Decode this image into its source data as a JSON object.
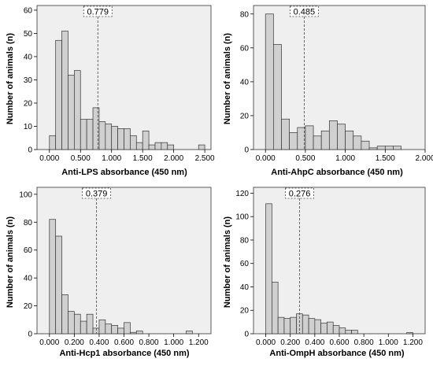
{
  "chart_data": [
    {
      "type": "bar",
      "xlabel": "Anti-LPS absorbance (450 nm)",
      "ylabel": "Number of animals (n)",
      "cutoff": 0.779,
      "cutoff_label": "0.779",
      "bin_width": 0.1,
      "bin_starts": [
        0.0,
        0.1,
        0.2,
        0.3,
        0.4,
        0.5,
        0.6,
        0.7,
        0.8,
        0.9,
        1.0,
        1.1,
        1.2,
        1.3,
        1.4,
        1.5,
        1.6,
        1.7,
        1.8,
        1.9,
        2.0,
        2.1,
        2.2,
        2.3,
        2.4
      ],
      "values": [
        6,
        47,
        51,
        32,
        34,
        13,
        13,
        18,
        12,
        11,
        10,
        9,
        9,
        6,
        3,
        8,
        2,
        3,
        3,
        2,
        0,
        0,
        0,
        0,
        2
      ],
      "xlim": [
        -0.2,
        2.6
      ],
      "ylim": [
        0,
        62
      ],
      "xticks": [
        0,
        0.5,
        1.0,
        1.5,
        2.0,
        2.5
      ],
      "xtick_labels": [
        "0.000",
        "0.500",
        "1.000",
        "1.500",
        "2.000",
        "2.500"
      ],
      "yticks": [
        0,
        10,
        20,
        30,
        40,
        50,
        60
      ],
      "ytick_labels": [
        "0",
        "10",
        "20",
        "30",
        "40",
        "50",
        "60"
      ],
      "colors": {
        "bar": "#d0d0d0",
        "plot_bg": "#efefef",
        "edge": "#333333"
      }
    },
    {
      "type": "bar",
      "xlabel": "Anti-AhpC absorbance (450 nm)",
      "ylabel": "Number of animals (n)",
      "cutoff": 0.485,
      "cutoff_label": "0.485",
      "bin_width": 0.1,
      "bin_starts": [
        0.0,
        0.1,
        0.2,
        0.3,
        0.4,
        0.5,
        0.6,
        0.7,
        0.8,
        0.9,
        1.0,
        1.1,
        1.2,
        1.3,
        1.4,
        1.5,
        1.6,
        1.7
      ],
      "values": [
        80,
        62,
        18,
        10,
        13,
        14,
        8,
        11,
        17,
        15,
        11,
        8,
        5,
        1,
        2,
        2,
        2,
        0
      ],
      "xlim": [
        -0.15,
        2.0
      ],
      "ylim": [
        0,
        85
      ],
      "xticks": [
        0,
        0.5,
        1.0,
        1.5,
        2.0
      ],
      "xtick_labels": [
        "0.000",
        "0.500",
        "1.000",
        "1.500",
        "2.000"
      ],
      "yticks": [
        0,
        20,
        40,
        60,
        80
      ],
      "ytick_labels": [
        "0",
        "20",
        "40",
        "60",
        "80"
      ],
      "colors": {
        "bar": "#d0d0d0",
        "plot_bg": "#efefef",
        "edge": "#333333"
      }
    },
    {
      "type": "bar",
      "xlabel": "Anti-Hcp1 absorbance (450 nm)",
      "ylabel": "Number of animals (n)",
      "cutoff": 0.379,
      "cutoff_label": "0.379",
      "bin_width": 0.05,
      "bin_starts": [
        0.0,
        0.05,
        0.1,
        0.15,
        0.2,
        0.25,
        0.3,
        0.35,
        0.4,
        0.45,
        0.5,
        0.55,
        0.6,
        0.65,
        0.7,
        0.75,
        0.8,
        0.85,
        0.9,
        0.95,
        1.0,
        1.05,
        1.1,
        1.15
      ],
      "values": [
        82,
        70,
        28,
        16,
        14,
        9,
        14,
        4,
        10,
        7,
        6,
        4,
        8,
        1,
        2,
        0,
        0,
        0,
        0,
        0,
        0,
        0,
        2,
        0
      ],
      "xlim": [
        -0.1,
        1.3
      ],
      "ylim": [
        0,
        105
      ],
      "xticks": [
        0,
        0.2,
        0.4,
        0.6,
        0.8,
        1.0,
        1.2
      ],
      "xtick_labels": [
        "0.000",
        "0.200",
        "0.400",
        "0.600",
        "0.800",
        "1.000",
        "1.200"
      ],
      "yticks": [
        0,
        20,
        40,
        60,
        80,
        100
      ],
      "ytick_labels": [
        "0",
        "20",
        "40",
        "60",
        "80",
        "100"
      ],
      "colors": {
        "bar": "#d0d0d0",
        "plot_bg": "#efefef",
        "edge": "#333333"
      }
    },
    {
      "type": "bar",
      "xlabel": "Anti-OmpH absorbance (450 nm)",
      "ylabel": "Number of animals (n)",
      "cutoff": 0.276,
      "cutoff_label": "0.276",
      "bin_width": 0.05,
      "bin_starts": [
        0.0,
        0.05,
        0.1,
        0.15,
        0.2,
        0.25,
        0.3,
        0.35,
        0.4,
        0.45,
        0.5,
        0.55,
        0.6,
        0.65,
        0.7,
        0.75,
        0.8,
        0.85,
        0.9,
        0.95,
        1.0,
        1.05,
        1.1,
        1.15
      ],
      "values": [
        111,
        44,
        14,
        13,
        14,
        17,
        16,
        13,
        12,
        9,
        10,
        7,
        5,
        3,
        3,
        0,
        0,
        0,
        0,
        0,
        0,
        0,
        0,
        1
      ],
      "xlim": [
        -0.1,
        1.3
      ],
      "ylim": [
        0,
        125
      ],
      "xticks": [
        0,
        0.2,
        0.4,
        0.6,
        0.8,
        1.0,
        1.2
      ],
      "xtick_labels": [
        "0.000",
        "0.200",
        "0.400",
        "0.600",
        "0.800",
        "1.000",
        "1.200"
      ],
      "yticks": [
        0,
        20,
        40,
        60,
        80,
        100,
        120
      ],
      "ytick_labels": [
        "0",
        "20",
        "40",
        "60",
        "80",
        "100",
        "120"
      ],
      "colors": {
        "bar": "#d0d0d0",
        "plot_bg": "#efefef",
        "edge": "#333333"
      }
    }
  ]
}
